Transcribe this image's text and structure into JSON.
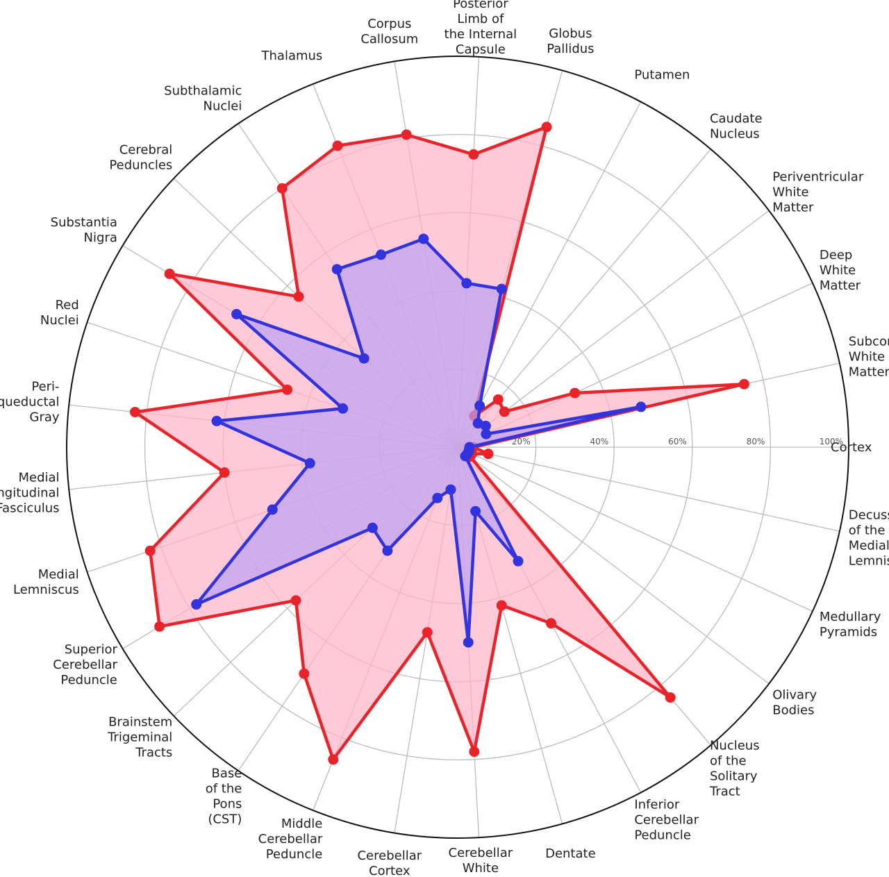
{
  "chart_data": {
    "type": "radar",
    "categories": [
      "Cortex",
      "Subcortical\nWhite\nMatter",
      "Deep\nWhite\nMatter",
      "Periventricular\nWhite\nMatter",
      "Caudate\nNucleus",
      "Putamen",
      "Globus\nPallidus",
      "Posterior\nLimb of\nthe Internal\nCapsule",
      "Corpus\nCallosum",
      "Thalamus",
      "Subthalamic\nNuclei",
      "Cerebral\nPeduncles",
      "Substantia\nNigra",
      "Red\nNuclei",
      "Peri-\naqueductal\nGray",
      "Medial\nLongitudinal\nFasciculus",
      "Medial\nLemniscus",
      "Superior\nCerebellar\nPeduncle",
      "Brainstem\nTrigeminal\nTracts",
      "Base\nof the\nPons\n(CST)",
      "Middle\nCerebellar\nPeduncle",
      "Cerebellar\nCortex",
      "Cerebellar\nWhite\nMatter",
      "Dentate",
      "Inferior\nCerebellar\nPeduncle",
      "Nucleus\nof the\nSolitary\nTract",
      "Olivary\nBodies",
      "Medullary\nPyramids",
      "Decussation\nof the\nMedial\nLemniscus"
    ],
    "tick_labels": [
      "20%",
      "40%",
      "60%",
      "80%",
      "100%"
    ],
    "ticks": [
      20,
      40,
      60,
      80,
      100
    ],
    "rlim": [
      0,
      100
    ],
    "grid": true,
    "series": [
      {
        "color": "#e8242a",
        "fill": "#ffb3c6",
        "values": [
          4,
          75,
          33,
          15,
          16,
          9,
          85,
          75,
          81,
          83,
          80,
          56,
          86,
          46,
          83,
          60,
          83,
          89,
          57,
          70,
          86,
          48,
          78,
          42,
          51,
          84,
          4,
          4,
          8
        ]
      },
      {
        "color": "#3333dd",
        "fill": "#bba2f4",
        "values": [
          3,
          48,
          8,
          9,
          8,
          12,
          42,
          42,
          54,
          53,
          55,
          33,
          66,
          31,
          62,
          38,
          50,
          78,
          30,
          32,
          14,
          11,
          50,
          17,
          33,
          3,
          3,
          3,
          3
        ]
      }
    ]
  }
}
